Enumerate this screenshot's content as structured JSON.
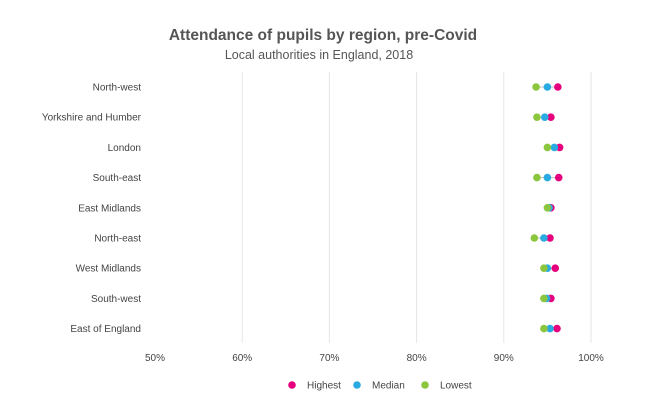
{
  "chart_data": {
    "type": "dot",
    "title": "Attendance of pupils by region, pre-Covid",
    "subtitle": "Local authorities in England, 2018",
    "xlabel": "",
    "ylabel": "",
    "xlim": [
      50,
      100
    ],
    "x_ticks": [
      "50%",
      "60%",
      "70%",
      "80%",
      "90%",
      "100%"
    ],
    "grid": true,
    "legend_position": "bottom",
    "categories": [
      "North-west",
      "Yorkshire and Humber",
      "London",
      "South-east",
      "East Midlands",
      "North-east",
      "West Midlands",
      "South-west",
      "East of England"
    ],
    "series": [
      {
        "name": "Highest",
        "color": "#e6007e",
        "values": [
          96.2,
          95.4,
          96.4,
          96.3,
          95.4,
          95.3,
          95.9,
          95.4,
          96.1
        ]
      },
      {
        "name": "Median",
        "color": "#29abe2",
        "values": [
          95.0,
          94.7,
          95.8,
          95.0,
          95.2,
          94.6,
          95.0,
          94.9,
          95.3
        ]
      },
      {
        "name": "Lowest",
        "color": "#8cc63f",
        "values": [
          93.7,
          93.8,
          95.0,
          93.8,
          95.0,
          93.5,
          94.6,
          94.6,
          94.6
        ]
      }
    ]
  }
}
